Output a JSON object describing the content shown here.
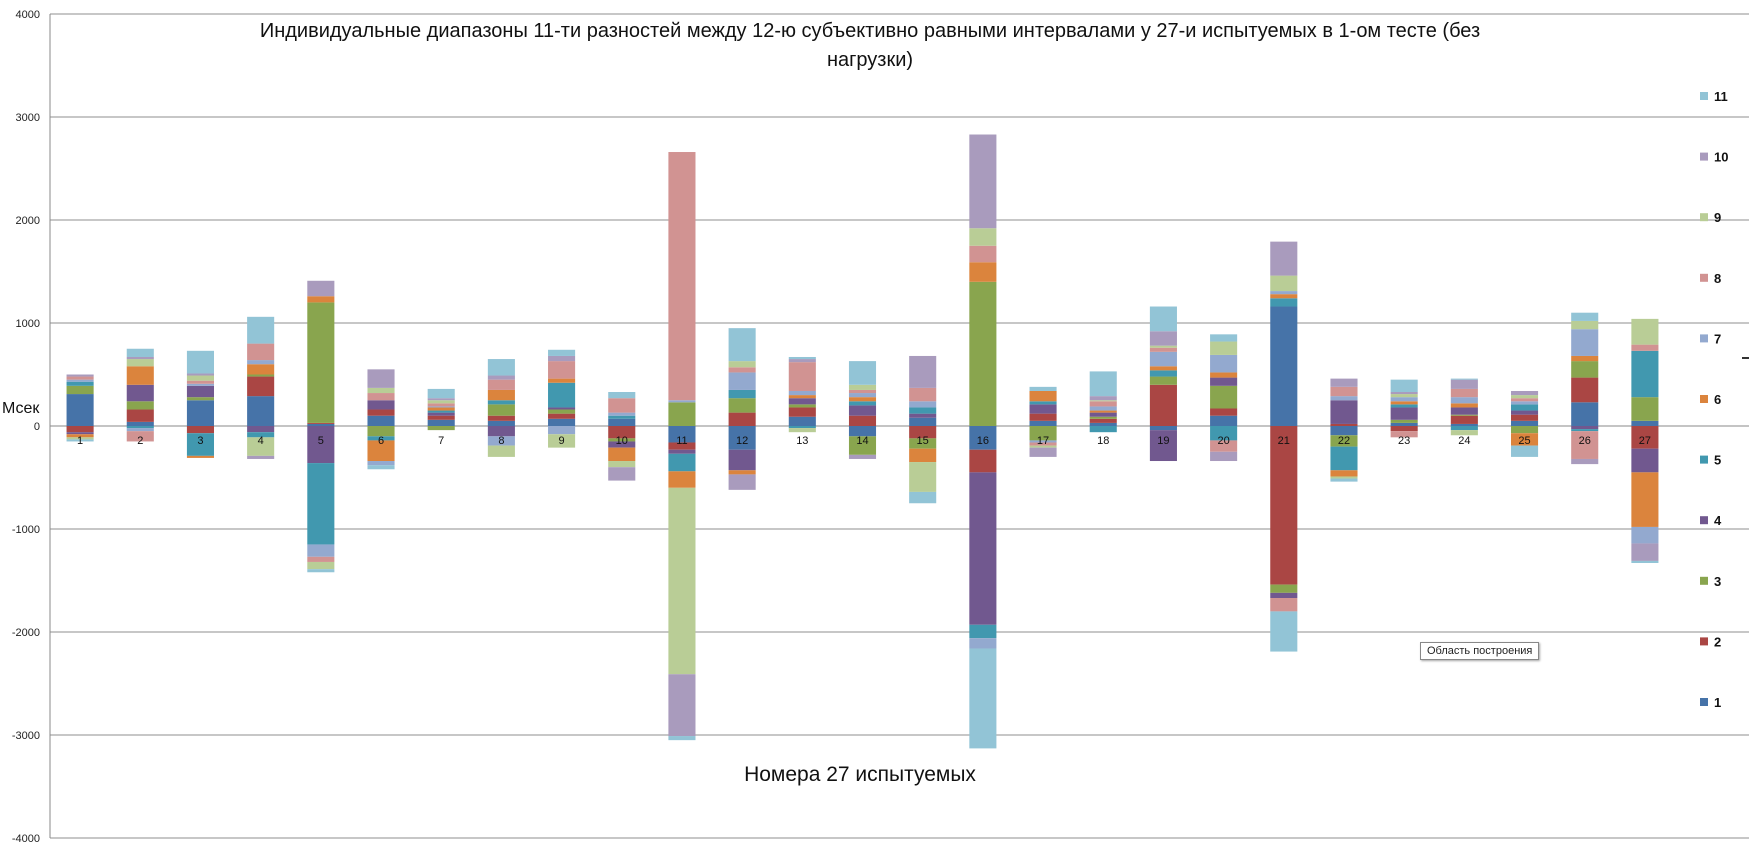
{
  "chart_data": {
    "type": "bar",
    "stacked": true,
    "title": "Индивидуальные диапазоны 11-ти разностей между 12-ю субъективно равными интервалами у 27-и испытуемых в 1-ом тесте (без нагрузки)",
    "xlabel": "Номера 27 испытуемых",
    "ylabel": "Мсек",
    "ylim": [
      -4000,
      4000
    ],
    "yticks": [
      4000,
      3000,
      2000,
      1000,
      0,
      -1000,
      -2000,
      -3000,
      -4000
    ],
    "grid": true,
    "legend_position": "right",
    "categories": [
      "1",
      "2",
      "3",
      "4",
      "5",
      "6",
      "7",
      "8",
      "9",
      "10",
      "11",
      "12",
      "13",
      "14",
      "15",
      "16",
      "17",
      "18",
      "19",
      "20",
      "21",
      "22",
      "23",
      "24",
      "25",
      "26",
      "27"
    ],
    "series": [
      {
        "name": "1",
        "color": "#4673A8",
        "values": [
          310,
          40,
          250,
          290,
          20,
          100,
          60,
          50,
          70,
          70,
          -160,
          -230,
          90,
          -100,
          80,
          -230,
          50,
          30,
          -40,
          100,
          1160,
          -90,
          30,
          20,
          50,
          230,
          50
        ]
      },
      {
        "name": "2",
        "color": "#AA4644",
        "values": [
          -60,
          120,
          -70,
          190,
          10,
          60,
          40,
          50,
          50,
          -120,
          -70,
          130,
          90,
          100,
          -120,
          -220,
          70,
          40,
          400,
          70,
          -1540,
          20,
          -50,
          80,
          60,
          240,
          -220
        ]
      },
      {
        "name": "3",
        "color": "#89A54E",
        "values": [
          80,
          80,
          30,
          20,
          1170,
          -100,
          -40,
          110,
          40,
          -30,
          230,
          140,
          30,
          -180,
          -100,
          1400,
          -140,
          20,
          80,
          220,
          -80,
          -110,
          30,
          10,
          -70,
          160,
          230
        ]
      },
      {
        "name": "4",
        "color": "#71588F",
        "values": [
          -20,
          160,
          110,
          -60,
          -360,
          90,
          30,
          -100,
          20,
          -60,
          -40,
          -200,
          60,
          100,
          40,
          -1480,
          90,
          40,
          -300,
          80,
          -50,
          230,
          120,
          70,
          40,
          -30,
          -230
        ]
      },
      {
        "name": "5",
        "color": "#4198AF",
        "values": [
          40,
          -20,
          -220,
          -50,
          -790,
          -40,
          20,
          40,
          240,
          30,
          -170,
          80,
          -20,
          40,
          60,
          -130,
          30,
          -60,
          60,
          -140,
          80,
          -230,
          30,
          -40,
          60,
          -20,
          450
        ]
      },
      {
        "name": "6",
        "color": "#DB843D",
        "values": [
          -30,
          180,
          -20,
          100,
          60,
          -200,
          30,
          100,
          40,
          -130,
          -160,
          -40,
          30,
          40,
          -130,
          190,
          100,
          20,
          40,
          50,
          40,
          -60,
          30,
          40,
          -120,
          50,
          -530
        ]
      },
      {
        "name": "7",
        "color": "#93A9CF",
        "values": [
          20,
          -30,
          20,
          40,
          -120,
          -40,
          10,
          -90,
          -80,
          30,
          20,
          170,
          40,
          40,
          60,
          -100,
          -20,
          40,
          140,
          170,
          30,
          40,
          40,
          60,
          30,
          260,
          -160
        ]
      },
      {
        "name": "8",
        "color": "#D19392",
        "values": [
          30,
          -100,
          30,
          160,
          -50,
          70,
          30,
          100,
          170,
          140,
          2410,
          50,
          280,
          30,
          130,
          160,
          -30,
          50,
          40,
          -110,
          -130,
          90,
          -60,
          80,
          30,
          -270,
          60
        ]
      },
      {
        "name": "9",
        "color": "#B9CD96",
        "values": [
          -20,
          70,
          50,
          -180,
          -70,
          50,
          30,
          -110,
          -130,
          -60,
          -1810,
          60,
          -40,
          50,
          -290,
          170,
          -20,
          10,
          20,
          130,
          150,
          -20,
          30,
          -50,
          30,
          80,
          250
        ]
      },
      {
        "name": "10",
        "color": "#A99BBD",
        "values": [
          20,
          20,
          20,
          -30,
          150,
          180,
          20,
          40,
          50,
          -130,
          -600,
          -150,
          30,
          -40,
          310,
          910,
          -90,
          40,
          140,
          -90,
          330,
          80,
          20,
          90,
          40,
          -50,
          -170
        ]
      },
      {
        "name": "11",
        "color": "#92C4D6",
        "values": [
          -20,
          80,
          220,
          260,
          -30,
          -40,
          90,
          160,
          60,
          60,
          -40,
          320,
          20,
          230,
          -110,
          -970,
          40,
          240,
          240,
          70,
          -390,
          -30,
          120,
          10,
          -110,
          80,
          -20
        ]
      }
    ]
  },
  "ui": {
    "tooltip": "Область построения"
  }
}
